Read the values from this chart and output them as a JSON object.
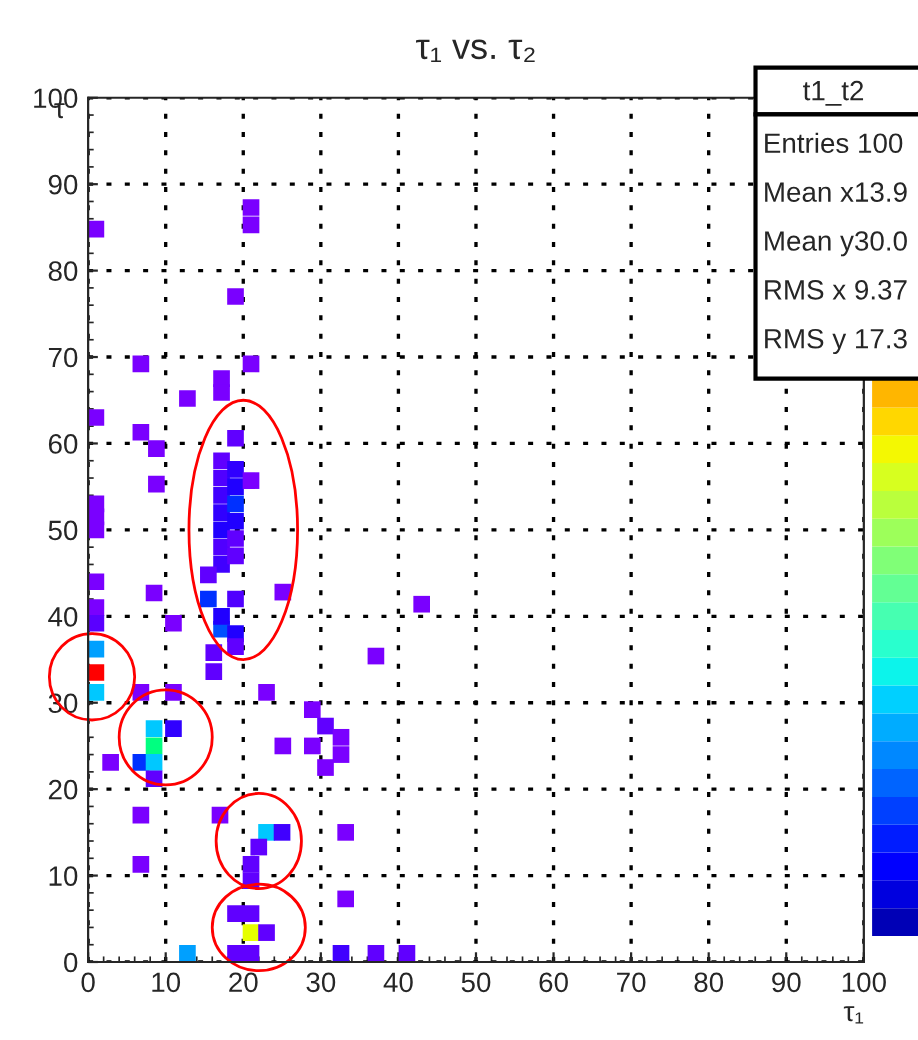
{
  "chart_data": {
    "type": "scatter",
    "title": "τ₁ vs. τ₂",
    "xlabel": "τ₁",
    "ylabel": "τ",
    "x": [
      1,
      1,
      1,
      1,
      1,
      1,
      1,
      1,
      1,
      1,
      1,
      6.8,
      12.8,
      6.8,
      8.8,
      8.8,
      8.5,
      11,
      6.8,
      11,
      8.5,
      11,
      8.5,
      2.9,
      6.8,
      8.5,
      8.5,
      6.8,
      6.8,
      12.8,
      21,
      21,
      19,
      21,
      17.2,
      17.2,
      19,
      17.2,
      17.2,
      17.2,
      17.2,
      17.2,
      17.2,
      17.2,
      19,
      19,
      19,
      19,
      19,
      19,
      21,
      15.5,
      15.5,
      17.2,
      19,
      17.2,
      19,
      19,
      25.1,
      23,
      28.9,
      30.6,
      30.6,
      28.9,
      25.1,
      16.2,
      16.2,
      17,
      23,
      25,
      22,
      21,
      21,
      21,
      19,
      21,
      23,
      21,
      19,
      43,
      37.1,
      32.6,
      32.6,
      33.2,
      33.2,
      32.6,
      37.1,
      41.1
    ],
    "values": [
      84.8,
      63,
      53,
      51.5,
      50,
      41,
      39.2,
      36.2,
      33.5,
      31.2,
      44,
      69.2,
      65.2,
      61.3,
      59.4,
      55.3,
      42.7,
      39.2,
      31.2,
      31.2,
      27,
      27,
      25,
      23.1,
      23.1,
      23.1,
      21.2,
      17,
      11.3,
      1,
      87.3,
      85.3,
      77,
      69.2,
      67.5,
      65.9,
      60.6,
      58,
      56,
      54,
      52,
      50,
      48,
      46,
      57,
      55,
      53,
      51,
      49,
      47,
      55.7,
      44.8,
      42,
      38.5,
      42,
      40,
      38,
      36.5,
      42.8,
      31.2,
      29.2,
      27.3,
      22.5,
      25,
      25,
      35.8,
      33.6,
      17,
      15,
      15,
      13.3,
      11.3,
      9.4,
      5.6,
      5.6,
      3.4,
      3.4,
      1,
      1,
      41.4,
      35.4,
      26,
      24,
      15,
      7.3,
      1,
      1,
      1
    ],
    "colors": [
      "#7a00ff",
      "#7a00ff",
      "#7a00ff",
      "#7a00ff",
      "#7a00ff",
      "#7a00ff",
      "#5a00ff",
      "#00a0ff",
      "#ff0000",
      "#00c8ff",
      "#7a00ff",
      "#7a00ff",
      "#7a00ff",
      "#7a00ff",
      "#7a00ff",
      "#7a00ff",
      "#7a00ff",
      "#7a00ff",
      "#7a00ff",
      "#7a00ff",
      "#00c8ff",
      "#3000ff",
      "#00ff80",
      "#7a00ff",
      "#0030ff",
      "#00c8ff",
      "#6000ff",
      "#7a00ff",
      "#7a00ff",
      "#00a0ff",
      "#7a00ff",
      "#7a00ff",
      "#7a00ff",
      "#7a00ff",
      "#7a00ff",
      "#7a00ff",
      "#6000ff",
      "#6000ff",
      "#5000ff",
      "#4000ff",
      "#3000ff",
      "#2000ff",
      "#5000ff",
      "#4000ff",
      "#3000ff",
      "#2000ff",
      "#0030ff",
      "#2000ff",
      "#6000ff",
      "#6000ff",
      "#7a00ff",
      "#6000ff",
      "#0030ff",
      "#0050ff",
      "#5000ff",
      "#2000ff",
      "#2000ff",
      "#6000ff",
      "#7a00ff",
      "#7a00ff",
      "#7a00ff",
      "#6000ff",
      "#7a00ff",
      "#7a00ff",
      "#7a00ff",
      "#6000ff",
      "#6000ff",
      "#7a00ff",
      "#00c8ff",
      "#4000ff",
      "#6000ff",
      "#6000ff",
      "#6000ff",
      "#6000ff",
      "#6000ff",
      "#e6ff00",
      "#6000ff",
      "#6000ff",
      "#6000ff",
      "#7a00ff",
      "#7a00ff",
      "#7a00ff",
      "#7a00ff",
      "#7a00ff",
      "#7a00ff",
      "#4000ff",
      "#6000ff",
      "#6000ff"
    ],
    "marker": "square",
    "xlim": [
      0,
      100
    ],
    "ylim": [
      0,
      100
    ],
    "xticks": [
      0,
      10,
      20,
      30,
      40,
      50,
      60,
      70,
      80,
      90,
      100
    ],
    "yticks": [
      0,
      10,
      20,
      30,
      40,
      50,
      60,
      70,
      80,
      90,
      100
    ],
    "grid": true,
    "annotations": [
      "t1_t2",
      "Entries 100",
      "Mean x13.9",
      "Mean y30.0",
      "RMS x 9.37",
      "RMS y 17.3"
    ]
  }
}
